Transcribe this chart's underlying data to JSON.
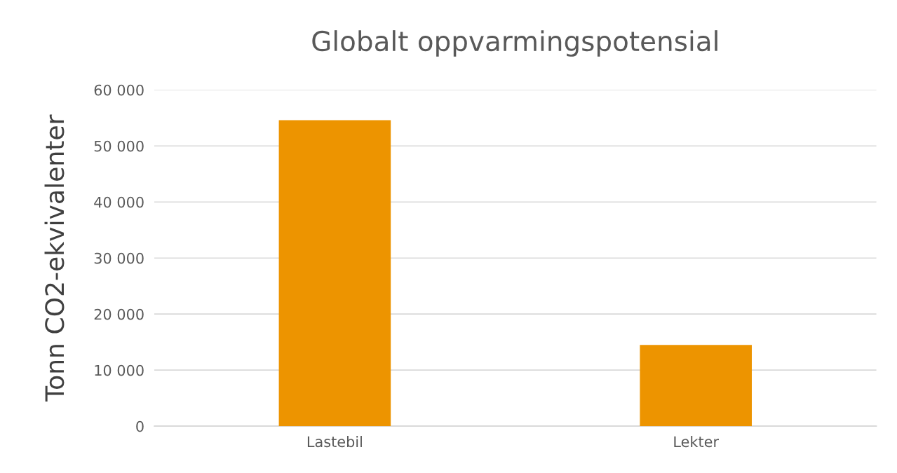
{
  "chart_data": {
    "type": "bar",
    "title": "Globalt oppvarmingspotensial",
    "ylabel": "Tonn CO2-ekvivalenter",
    "categories": [
      "Lastebil",
      "Lekter"
    ],
    "values": [
      54600,
      14500
    ],
    "color": "#ed9400",
    "ylim": [
      0,
      60000
    ],
    "yticks": [
      {
        "value": 0,
        "label": "0"
      },
      {
        "value": 10000,
        "label": "10 000"
      },
      {
        "value": 20000,
        "label": "20 000"
      },
      {
        "value": 30000,
        "label": "30 000"
      },
      {
        "value": 40000,
        "label": "40 000"
      },
      {
        "value": 50000,
        "label": "50 000"
      },
      {
        "value": 60000,
        "label": "60 000"
      }
    ],
    "grid": "y",
    "legend": false
  }
}
